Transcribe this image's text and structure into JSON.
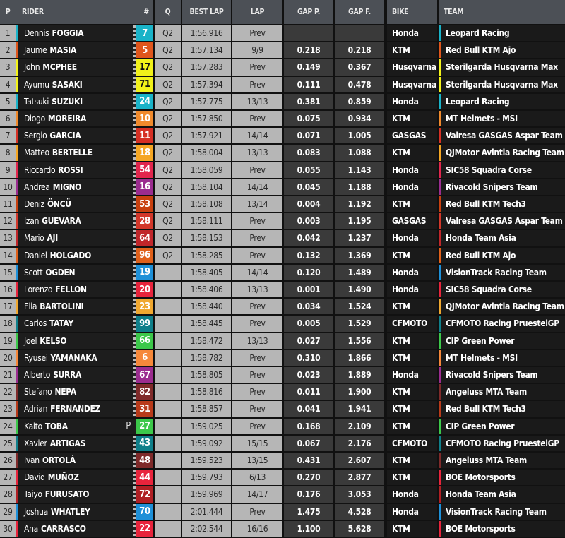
{
  "headers": {
    "p": "P",
    "rider": "RIDER",
    "num": "#",
    "q": "Q",
    "best": "BEST LAP",
    "lap": "LAP",
    "gap_p": "GAP P.",
    "gap_f": "GAP F.",
    "bike": "BIKE",
    "team": "TEAM"
  },
  "rows": [
    {
      "pos": "1",
      "first": "Dennis",
      "last": "FOGGIA",
      "num": "7",
      "color": "#1ab3c8",
      "q": "Q2",
      "best": "1:56.916",
      "lap": "Prev",
      "gap_p": "",
      "gap_f": "",
      "bike": "Honda",
      "team": "Leopard Racing",
      "flag": "checkered"
    },
    {
      "pos": "2",
      "first": "Jaume",
      "last": "MASIA",
      "num": "5",
      "color": "#e0561c",
      "q": "Q2",
      "best": "1:57.134",
      "lap": "9/9",
      "gap_p": "0.218",
      "gap_f": "0.218",
      "bike": "KTM",
      "team": "Red Bull KTM Ajo",
      "flag": "checkered"
    },
    {
      "pos": "3",
      "first": "John",
      "last": "MCPHEE",
      "num": "17",
      "color": "#f2f21a",
      "q": "Q2",
      "best": "1:57.283",
      "lap": "Prev",
      "gap_p": "0.149",
      "gap_f": "0.367",
      "bike": "Husqvarna",
      "team": "Sterilgarda Husqvarna Max",
      "flag": "checkered"
    },
    {
      "pos": "4",
      "first": "Ayumu",
      "last": "SASAKI",
      "num": "71",
      "color": "#f2f21a",
      "q": "Q2",
      "best": "1:57.394",
      "lap": "Prev",
      "gap_p": "0.111",
      "gap_f": "0.478",
      "bike": "Husqvarna",
      "team": "Sterilgarda Husqvarna Max",
      "flag": "checkered"
    },
    {
      "pos": "5",
      "first": "Tatsuki",
      "last": "SUZUKI",
      "num": "24",
      "color": "#1ab3c8",
      "q": "Q2",
      "best": "1:57.775",
      "lap": "13/13",
      "gap_p": "0.381",
      "gap_f": "0.859",
      "bike": "Honda",
      "team": "Leopard Racing",
      "flag": "checkered"
    },
    {
      "pos": "6",
      "first": "Diogo",
      "last": "MOREIRA",
      "num": "10",
      "color": "#f08a2c",
      "q": "Q2",
      "best": "1:57.850",
      "lap": "Prev",
      "gap_p": "0.075",
      "gap_f": "0.934",
      "bike": "KTM",
      "team": "MT Helmets - MSI",
      "flag": "checkered"
    },
    {
      "pos": "7",
      "first": "Sergio",
      "last": "GARCIA",
      "num": "11",
      "color": "#d63024",
      "q": "Q2",
      "best": "1:57.921",
      "lap": "14/14",
      "gap_p": "0.071",
      "gap_f": "1.005",
      "bike": "GASGAS",
      "team": "Valresa GASGAS Aspar Team",
      "flag": "checkered"
    },
    {
      "pos": "8",
      "first": "Matteo",
      "last": "BERTELLE",
      "num": "18",
      "color": "#f5a623",
      "q": "Q2",
      "best": "1:58.004",
      "lap": "13/13",
      "gap_p": "0.083",
      "gap_f": "1.088",
      "bike": "KTM",
      "team": "QJMotor Avintia Racing Team",
      "flag": "checkered"
    },
    {
      "pos": "9",
      "first": "Riccardo",
      "last": "ROSSI",
      "num": "54",
      "color": "#e2264d",
      "q": "Q2",
      "best": "1:58.059",
      "lap": "Prev",
      "gap_p": "0.055",
      "gap_f": "1.143",
      "bike": "Honda",
      "team": "SIC58 Squadra Corse",
      "flag": "checkered"
    },
    {
      "pos": "10",
      "first": "Andrea",
      "last": "MIGNO",
      "num": "16",
      "color": "#9b2c8f",
      "q": "Q2",
      "best": "1:58.104",
      "lap": "14/14",
      "gap_p": "0.045",
      "gap_f": "1.188",
      "bike": "Honda",
      "team": "Rivacold Snipers Team",
      "flag": "checkered"
    },
    {
      "pos": "11",
      "first": "Deniz",
      "last": "ÖNCÜ",
      "num": "53",
      "color": "#c8400f",
      "q": "Q2",
      "best": "1:58.108",
      "lap": "13/14",
      "gap_p": "0.004",
      "gap_f": "1.192",
      "bike": "KTM",
      "team": "Red Bull KTM Tech3",
      "flag": "checkered"
    },
    {
      "pos": "12",
      "first": "Izan",
      "last": "GUEVARA",
      "num": "28",
      "color": "#d3372a",
      "q": "Q2",
      "best": "1:58.111",
      "lap": "Prev",
      "gap_p": "0.003",
      "gap_f": "1.195",
      "bike": "GASGAS",
      "team": "Valresa GASGAS Aspar Team",
      "flag": "checkered"
    },
    {
      "pos": "13",
      "first": "Mario",
      "last": "AJI",
      "num": "64",
      "color": "#c0262a",
      "q": "Q2",
      "best": "1:58.153",
      "lap": "Prev",
      "gap_p": "0.042",
      "gap_f": "1.237",
      "bike": "Honda",
      "team": "Honda Team Asia",
      "flag": "checkered"
    },
    {
      "pos": "14",
      "first": "Daniel",
      "last": "HOLGADO",
      "num": "96",
      "color": "#e0601a",
      "q": "Q2",
      "best": "1:58.285",
      "lap": "Prev",
      "gap_p": "0.132",
      "gap_f": "1.369",
      "bike": "KTM",
      "team": "Red Bull KTM Ajo",
      "flag": "checkered"
    },
    {
      "pos": "15",
      "first": "Scott",
      "last": "OGDEN",
      "num": "19",
      "color": "#1e90d8",
      "q": "",
      "best": "1:58.405",
      "lap": "14/14",
      "gap_p": "0.120",
      "gap_f": "1.489",
      "bike": "Honda",
      "team": "VisionTrack Racing Team",
      "flag": "checkered"
    },
    {
      "pos": "16",
      "first": "Lorenzo",
      "last": "FELLON",
      "num": "20",
      "color": "#e8243c",
      "q": "",
      "best": "1:58.406",
      "lap": "13/13",
      "gap_p": "0.001",
      "gap_f": "1.490",
      "bike": "Honda",
      "team": "SIC58 Squadra Corse",
      "flag": "checkered"
    },
    {
      "pos": "17",
      "first": "Elia",
      "last": "BARTOLINI",
      "num": "23",
      "color": "#f0a830",
      "q": "",
      "best": "1:58.440",
      "lap": "Prev",
      "gap_p": "0.034",
      "gap_f": "1.524",
      "bike": "KTM",
      "team": "QJMotor Avintia Racing Team",
      "flag": "checkered"
    },
    {
      "pos": "18",
      "first": "Carlos",
      "last": "TATAY",
      "num": "99",
      "color": "#0f7f8a",
      "q": "",
      "best": "1:58.445",
      "lap": "Prev",
      "gap_p": "0.005",
      "gap_f": "1.529",
      "bike": "CFMOTO",
      "team": "CFMOTO Racing PruestelGP",
      "flag": "checkered"
    },
    {
      "pos": "19",
      "first": "Joel",
      "last": "KELSO",
      "num": "66",
      "color": "#3cc84a",
      "q": "",
      "best": "1:58.472",
      "lap": "13/13",
      "gap_p": "0.027",
      "gap_f": "1.556",
      "bike": "KTM",
      "team": "CIP Green Power",
      "flag": "checkered"
    },
    {
      "pos": "20",
      "first": "Ryusei",
      "last": "YAMANAKA",
      "num": "6",
      "color": "#f6883a",
      "q": "",
      "best": "1:58.782",
      "lap": "Prev",
      "gap_p": "0.310",
      "gap_f": "1.866",
      "bike": "KTM",
      "team": "MT Helmets - MSI",
      "flag": "checkered"
    },
    {
      "pos": "21",
      "first": "Alberto",
      "last": "SURRA",
      "num": "67",
      "color": "#9b2c8f",
      "q": "",
      "best": "1:58.805",
      "lap": "Prev",
      "gap_p": "0.023",
      "gap_f": "1.889",
      "bike": "Honda",
      "team": "Rivacold Snipers Team",
      "flag": "checkered"
    },
    {
      "pos": "22",
      "first": "Stefano",
      "last": "NEPA",
      "num": "82",
      "color": "#7f2a2a",
      "q": "",
      "best": "1:58.816",
      "lap": "Prev",
      "gap_p": "0.011",
      "gap_f": "1.900",
      "bike": "KTM",
      "team": "Angeluss MTA Team",
      "flag": "checkered"
    },
    {
      "pos": "23",
      "first": "Adrian",
      "last": "FERNANDEZ",
      "num": "31",
      "color": "#b83a1a",
      "q": "",
      "best": "1:58.857",
      "lap": "Prev",
      "gap_p": "0.041",
      "gap_f": "1.941",
      "bike": "KTM",
      "team": "Red Bull KTM Tech3",
      "flag": "checkered"
    },
    {
      "pos": "24",
      "first": "Kaito",
      "last": "TOBA",
      "num": "27",
      "color": "#3cc84a",
      "q": "",
      "best": "1:59.025",
      "lap": "Prev",
      "gap_p": "0.168",
      "gap_f": "2.109",
      "bike": "KTM",
      "team": "CIP Green Power",
      "flag": "pit",
      "pit": "P"
    },
    {
      "pos": "25",
      "first": "Xavier",
      "last": "ARTIGAS",
      "num": "43",
      "color": "#0f7f8a",
      "q": "",
      "best": "1:59.092",
      "lap": "15/15",
      "gap_p": "0.067",
      "gap_f": "2.176",
      "bike": "CFMOTO",
      "team": "CFMOTO Racing PruestelGP",
      "flag": "checkered"
    },
    {
      "pos": "26",
      "first": "Ivan",
      "last": "ORTOLÁ",
      "num": "48",
      "color": "#7f2a2a",
      "q": "",
      "best": "1:59.523",
      "lap": "13/15",
      "gap_p": "0.431",
      "gap_f": "2.607",
      "bike": "KTM",
      "team": "Angeluss MTA Team",
      "flag": "checkered"
    },
    {
      "pos": "27",
      "first": "David",
      "last": "MUÑOZ",
      "num": "44",
      "color": "#e8243c",
      "q": "",
      "best": "1:59.793",
      "lap": "6/13",
      "gap_p": "0.270",
      "gap_f": "2.877",
      "bike": "KTM",
      "team": "BOE Motorsports",
      "flag": "checkered"
    },
    {
      "pos": "28",
      "first": "Taiyo",
      "last": "FURUSATO",
      "num": "72",
      "color": "#b01f24",
      "q": "",
      "best": "1:59.969",
      "lap": "14/17",
      "gap_p": "0.176",
      "gap_f": "3.053",
      "bike": "Honda",
      "team": "Honda Team Asia",
      "flag": "checkered"
    },
    {
      "pos": "29",
      "first": "Joshua",
      "last": "WHATLEY",
      "num": "70",
      "color": "#1e90d8",
      "q": "",
      "best": "2:01.444",
      "lap": "Prev",
      "gap_p": "1.475",
      "gap_f": "4.528",
      "bike": "Honda",
      "team": "VisionTrack Racing Team",
      "flag": "checkered"
    },
    {
      "pos": "30",
      "first": "Ana",
      "last": "CARRASCO",
      "num": "22",
      "color": "#e8243c",
      "q": "",
      "best": "2:02.544",
      "lap": "16/16",
      "gap_p": "1.100",
      "gap_f": "5.628",
      "bike": "KTM",
      "team": "BOE Motorsports",
      "flag": "checkered"
    }
  ]
}
